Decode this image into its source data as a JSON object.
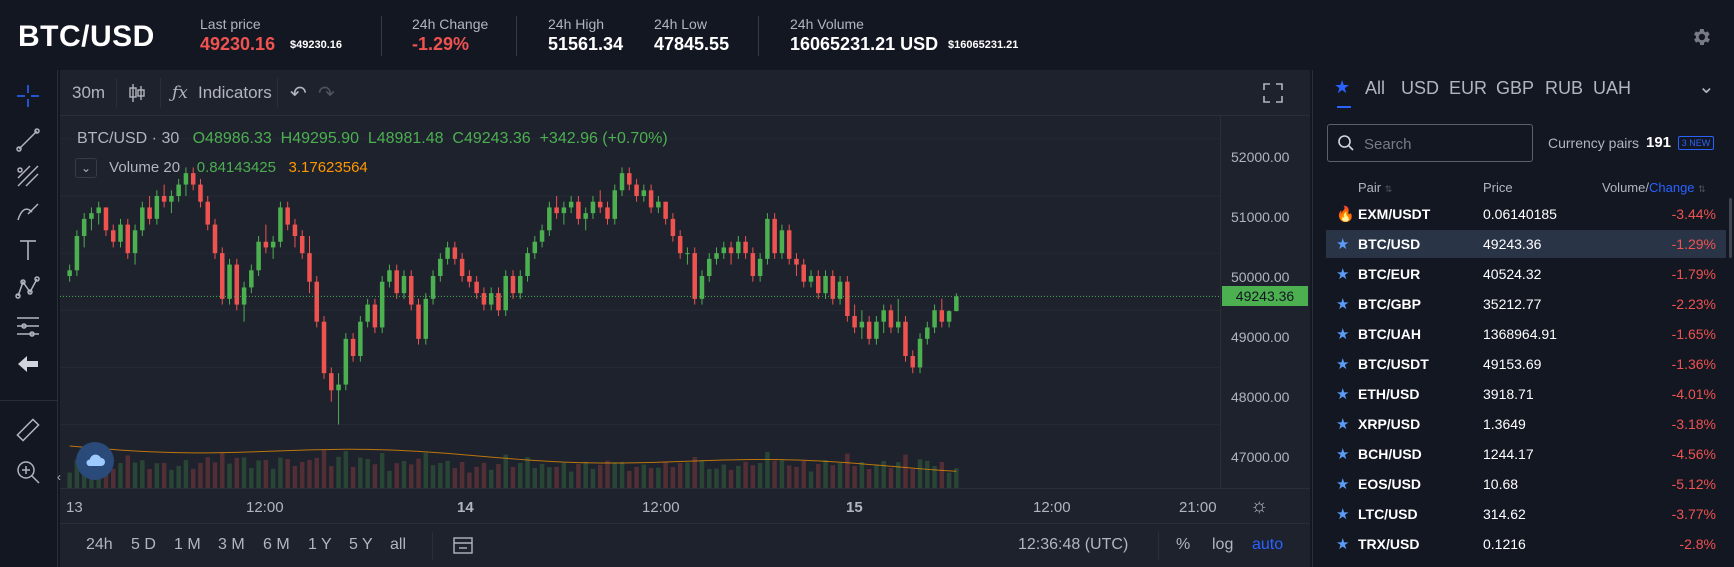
{
  "header": {
    "pair": "BTC/USD",
    "last_price_label": "Last price",
    "last_price": "49230.16",
    "last_price_usd": "$49230.16",
    "change_label": "24h Change",
    "change_value": "-1.29%",
    "high_label": "24h High",
    "high_value": "51561.34",
    "low_label": "24h Low",
    "low_value": "47845.55",
    "volume_label": "24h Volume",
    "volume_value": "16065231.21 USD",
    "volume_usd": "$16065231.21"
  },
  "chart_toolbar": {
    "interval": "30m",
    "indicators_label": "Indicators"
  },
  "legend": {
    "symbol": "BTC/USD · 30",
    "open": "O48986.33",
    "high": "H49295.90",
    "low": "L48981.48",
    "close": "C49243.36",
    "change": "+342.96 (+0.70%)",
    "volume_title": "Volume 20",
    "volume_v1": "0.84143425",
    "volume_v2": "3.17623564"
  },
  "price_axis": {
    "ticks": [
      "52000.00",
      "51000.00",
      "50000.00",
      "49000.00",
      "48000.00",
      "47000.00"
    ],
    "current": "49243.36"
  },
  "time_axis": {
    "ticks": [
      "13",
      "12:00",
      "14",
      "12:00",
      "15",
      "12:00",
      "21:00"
    ]
  },
  "bottom_bar": {
    "ranges": [
      "24h",
      "5 D",
      "1 M",
      "3 M",
      "6 M",
      "1 Y",
      "5 Y",
      "all"
    ],
    "clock": "12:36:48 (UTC)",
    "percent": "%",
    "log": "log",
    "auto": "auto"
  },
  "market": {
    "tabs": [
      "All",
      "USD",
      "EUR",
      "GBP",
      "RUB",
      "UAH"
    ],
    "search_placeholder": "Search",
    "pairs_label": "Currency pairs",
    "pairs_count": "191",
    "new_badge": "3 NEW",
    "col_pair": "Pair",
    "col_price": "Price",
    "col_volume": "Volume/",
    "col_change": "Change",
    "rows": [
      {
        "pair": "EXM/USDT",
        "price": "0.06140185",
        "change": "-3.44%",
        "icon": "fire-icon"
      },
      {
        "pair": "BTC/USD",
        "price": "49243.36",
        "change": "-1.29%",
        "icon": "star-icon"
      },
      {
        "pair": "BTC/EUR",
        "price": "40524.32",
        "change": "-1.79%",
        "icon": "star-icon"
      },
      {
        "pair": "BTC/GBP",
        "price": "35212.77",
        "change": "-2.23%",
        "icon": "star-icon"
      },
      {
        "pair": "BTC/UAH",
        "price": "1368964.91",
        "change": "-1.65%",
        "icon": "star-icon"
      },
      {
        "pair": "BTC/USDT",
        "price": "49153.69",
        "change": "-1.36%",
        "icon": "star-icon"
      },
      {
        "pair": "ETH/USD",
        "price": "3918.71",
        "change": "-4.01%",
        "icon": "star-icon"
      },
      {
        "pair": "XRP/USD",
        "price": "1.3649",
        "change": "-3.18%",
        "icon": "star-icon"
      },
      {
        "pair": "BCH/USD",
        "price": "1244.17",
        "change": "-4.56%",
        "icon": "star-icon"
      },
      {
        "pair": "EOS/USD",
        "price": "10.68",
        "change": "-5.12%",
        "icon": "star-icon"
      },
      {
        "pair": "LTC/USD",
        "price": "314.62",
        "change": "-3.77%",
        "icon": "star-icon"
      },
      {
        "pair": "TRX/USD",
        "price": "0.1216",
        "change": "-2.8%",
        "icon": "star-icon"
      }
    ]
  },
  "colors": {
    "up": "#4caf50",
    "down": "#ef5350",
    "accent": "#2962ff",
    "background": "#131722",
    "chart_background": "#1e222d"
  },
  "chart_data": {
    "type": "candlestick",
    "price_range": [
      46600,
      52400
    ],
    "candles": [
      [
        49600,
        49800,
        49500,
        49700
      ],
      [
        49700,
        50400,
        49600,
        50300
      ],
      [
        50300,
        50700,
        50100,
        50600
      ],
      [
        50600,
        50800,
        50400,
        50700
      ],
      [
        50700,
        50900,
        50500,
        50800
      ],
      [
        50800,
        50800,
        50300,
        50400
      ],
      [
        50400,
        50500,
        50100,
        50200
      ],
      [
        50200,
        50600,
        50100,
        50500
      ],
      [
        50500,
        50600,
        49900,
        50000
      ],
      [
        50000,
        50500,
        49800,
        50400
      ],
      [
        50400,
        50900,
        50300,
        50800
      ],
      [
        50800,
        51000,
        50500,
        50600
      ],
      [
        50600,
        51100,
        50500,
        51000
      ],
      [
        51000,
        51200,
        50800,
        50900
      ],
      [
        50900,
        51100,
        50700,
        51000
      ],
      [
        51000,
        51300,
        50900,
        51200
      ],
      [
        51200,
        51500,
        51000,
        51400
      ],
      [
        51400,
        51500,
        51100,
        51200
      ],
      [
        51200,
        51300,
        50800,
        50900
      ],
      [
        50900,
        51000,
        50400,
        50500
      ],
      [
        50500,
        50600,
        49900,
        50000
      ],
      [
        50000,
        50100,
        49100,
        49200
      ],
      [
        49200,
        49900,
        49100,
        49800
      ],
      [
        49800,
        49900,
        49000,
        49100
      ],
      [
        49100,
        49500,
        48800,
        49400
      ],
      [
        49400,
        49800,
        49300,
        49700
      ],
      [
        49700,
        50300,
        49600,
        50200
      ],
      [
        50200,
        50500,
        50000,
        50100
      ],
      [
        50100,
        50300,
        49900,
        50200
      ],
      [
        50200,
        50900,
        50100,
        50800
      ],
      [
        50800,
        50900,
        50400,
        50500
      ],
      [
        50500,
        50600,
        50100,
        50300
      ],
      [
        50300,
        50400,
        49900,
        50000
      ],
      [
        50000,
        50300,
        49300,
        49500
      ],
      [
        49500,
        49600,
        48700,
        48800
      ],
      [
        48800,
        48900,
        47800,
        47900
      ],
      [
        47900,
        48000,
        47400,
        47600
      ],
      [
        47600,
        47900,
        47000,
        47700
      ],
      [
        47700,
        48600,
        47600,
        48500
      ],
      [
        48500,
        48600,
        48100,
        48200
      ],
      [
        48200,
        48900,
        48100,
        48800
      ],
      [
        48800,
        49200,
        48700,
        49100
      ],
      [
        49100,
        49200,
        48600,
        48700
      ],
      [
        48700,
        49600,
        48600,
        49500
      ],
      [
        49500,
        49800,
        49400,
        49700
      ],
      [
        49700,
        49800,
        49200,
        49300
      ],
      [
        49300,
        49700,
        49200,
        49600
      ],
      [
        49600,
        49700,
        49000,
        49100
      ],
      [
        49100,
        49200,
        48400,
        48500
      ],
      [
        48500,
        49300,
        48400,
        49200
      ],
      [
        49200,
        49700,
        49100,
        49600
      ],
      [
        49600,
        50000,
        49500,
        49900
      ],
      [
        49900,
        50200,
        49800,
        50100
      ],
      [
        50100,
        50200,
        49800,
        49900
      ],
      [
        49900,
        50000,
        49500,
        49600
      ],
      [
        49600,
        49700,
        49400,
        49500
      ],
      [
        49500,
        49600,
        49200,
        49300
      ],
      [
        49300,
        49400,
        49000,
        49100
      ],
      [
        49100,
        49400,
        49000,
        49300
      ],
      [
        49300,
        49400,
        48900,
        49000
      ],
      [
        49000,
        49700,
        48900,
        49600
      ],
      [
        49600,
        49700,
        49200,
        49300
      ],
      [
        49300,
        49700,
        49200,
        49600
      ],
      [
        49600,
        50100,
        49500,
        50000
      ],
      [
        50000,
        50300,
        49900,
        50200
      ],
      [
        50200,
        50500,
        50100,
        50400
      ],
      [
        50400,
        50900,
        50300,
        50800
      ],
      [
        50800,
        51000,
        50600,
        50700
      ],
      [
        50700,
        50900,
        50500,
        50800
      ],
      [
        50800,
        51000,
        50700,
        50900
      ],
      [
        50900,
        51000,
        50500,
        50600
      ],
      [
        50600,
        50800,
        50400,
        50700
      ],
      [
        50700,
        51000,
        50600,
        50900
      ],
      [
        50900,
        51100,
        50700,
        50800
      ],
      [
        50800,
        50900,
        50500,
        50600
      ],
      [
        50600,
        51200,
        50500,
        51100
      ],
      [
        51100,
        51500,
        51000,
        51400
      ],
      [
        51400,
        51500,
        51100,
        51200
      ],
      [
        51200,
        51300,
        50900,
        51000
      ],
      [
        51000,
        51200,
        50900,
        51100
      ],
      [
        51100,
        51200,
        50700,
        50800
      ],
      [
        50800,
        51000,
        50700,
        50900
      ],
      [
        50900,
        50900,
        50500,
        50600
      ],
      [
        50600,
        50700,
        50200,
        50300
      ],
      [
        50300,
        50400,
        49900,
        50000
      ],
      [
        50000,
        50100,
        49800,
        50000
      ],
      [
        50000,
        50100,
        49100,
        49200
      ],
      [
        49200,
        49700,
        49100,
        49600
      ],
      [
        49600,
        50000,
        49500,
        49900
      ],
      [
        49900,
        50100,
        49800,
        50000
      ],
      [
        50000,
        50200,
        49900,
        50100
      ],
      [
        50100,
        50200,
        49800,
        50000
      ],
      [
        50000,
        50300,
        49900,
        50200
      ],
      [
        50200,
        50300,
        49900,
        50000
      ],
      [
        50000,
        50100,
        49500,
        49600
      ],
      [
        49600,
        50000,
        49500,
        49900
      ],
      [
        49900,
        50700,
        49800,
        50600
      ],
      [
        50600,
        50700,
        49900,
        50000
      ],
      [
        50000,
        50500,
        49900,
        50400
      ],
      [
        50400,
        50500,
        49800,
        49900
      ],
      [
        49900,
        50000,
        49600,
        49800
      ],
      [
        49800,
        49900,
        49400,
        49500
      ],
      [
        49500,
        49700,
        49400,
        49600
      ],
      [
        49600,
        49700,
        49200,
        49300
      ],
      [
        49300,
        49700,
        49200,
        49600
      ],
      [
        49600,
        49700,
        49100,
        49200
      ],
      [
        49200,
        49600,
        49100,
        49500
      ],
      [
        49500,
        49600,
        48800,
        48900
      ],
      [
        48900,
        49100,
        48600,
        48700
      ],
      [
        48700,
        49000,
        48500,
        48800
      ],
      [
        48800,
        48900,
        48400,
        48500
      ],
      [
        48500,
        48900,
        48400,
        48800
      ],
      [
        48800,
        49100,
        48600,
        49000
      ],
      [
        49000,
        49100,
        48600,
        48700
      ],
      [
        48700,
        49200,
        48600,
        48800
      ],
      [
        48800,
        48900,
        48100,
        48200
      ],
      [
        48200,
        48300,
        47900,
        48000
      ],
      [
        48000,
        48600,
        47900,
        48500
      ],
      [
        48500,
        48800,
        48400,
        48700
      ],
      [
        48700,
        49100,
        48600,
        49000
      ],
      [
        49000,
        49200,
        48700,
        48800
      ],
      [
        48800,
        49000,
        48700,
        48986
      ],
      [
        48986,
        49296,
        48981,
        49243
      ]
    ],
    "volume_ma": [
      0.84143425
    ],
    "volume": [
      3.17623564
    ]
  }
}
